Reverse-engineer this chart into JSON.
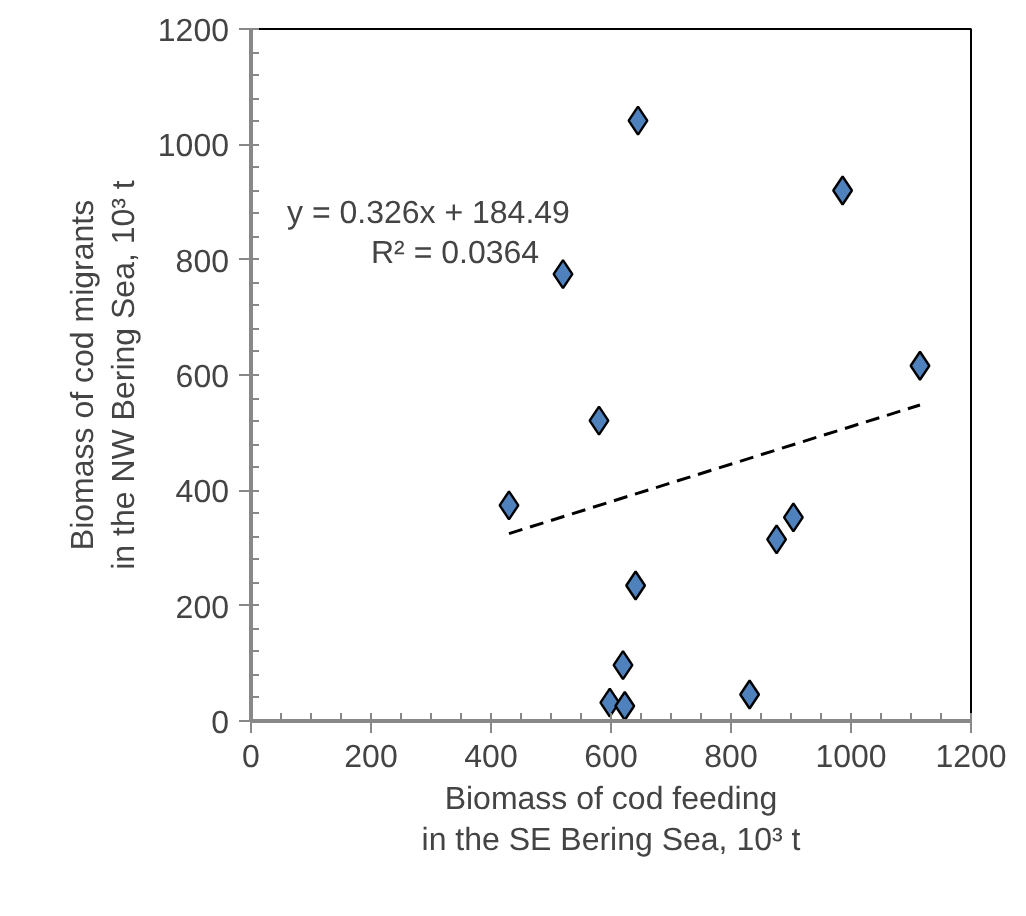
{
  "chart_data": {
    "type": "scatter",
    "xlabel": "Biomass of cod feeding\nin the SE Bering Sea, 10³ t",
    "ylabel": "Biomass of cod migrants\nin the NW Bering Sea, 10³ t",
    "xlim": [
      0,
      1200
    ],
    "xticks": [
      0,
      200,
      400,
      600,
      800,
      1000,
      1200
    ],
    "ylim": [
      0,
      1200
    ],
    "yticks": [
      0,
      200,
      400,
      600,
      800,
      1000,
      1200
    ],
    "grid": false,
    "marker": "diamond",
    "annotations": [
      "y = 0.326x  + 184.49",
      "R² = 0.0364"
    ],
    "series": [
      {
        "color": "#4f81bd",
        "x": [
          430,
          580,
          641,
          620,
          598,
          623,
          831,
          876,
          904,
          1115,
          520,
          645,
          986
        ],
        "values": [
          374,
          521,
          235,
          97,
          32,
          26,
          46,
          315,
          353,
          616,
          775,
          1041,
          920
        ]
      },
      {
        "type": "line",
        "color": "#000000",
        "line_style": "dashed",
        "marker": "none",
        "x": [
          430,
          1115
        ],
        "values": [
          325,
          548
        ]
      }
    ]
  }
}
